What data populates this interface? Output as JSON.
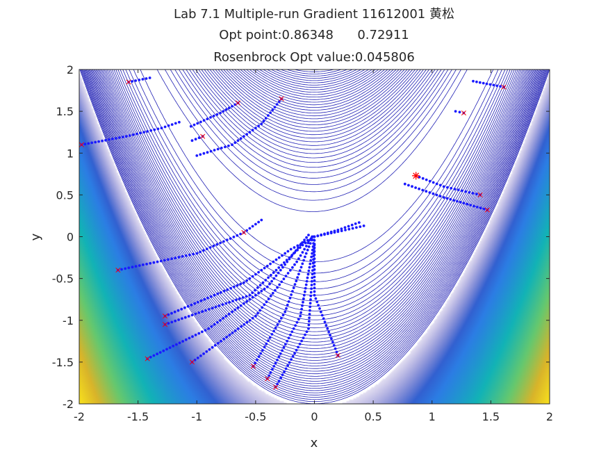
{
  "chart_data": {
    "type": "scatter",
    "title": [
      "Lab 7.1 Multiple-run Gradient 11612001 黄松",
      "Opt point:0.86348      0.72911",
      "Rosenbrock Opt value:0.045806"
    ],
    "xlabel": "x",
    "ylabel": "y",
    "xlim": [
      -2,
      2
    ],
    "ylim": [
      -2,
      2
    ],
    "x_ticks": [
      "-2",
      "-1.5",
      "-1",
      "-0.5",
      "0",
      "0.5",
      "1",
      "1.5",
      "2"
    ],
    "y_ticks": [
      "2",
      "1.5",
      "1",
      "0.5",
      "0",
      "-0.5",
      "-1",
      "-1.5",
      "-2"
    ],
    "background": "filled contour of Rosenbrock function f(x,y)=(1-x)^2+100(y-x^2)^2 with blue contour lines",
    "colors": {
      "contour_line": "#1f1fb4",
      "path_dots": "#1a1aff",
      "start_marker": "#ff0000",
      "opt_marker": "#ff0000",
      "colormap": [
        "#3e26a8",
        "#2c7de4",
        "#12b3b6",
        "#65c86f",
        "#d9b42a",
        "#f9e21d"
      ]
    },
    "optimum": {
      "x": 0.86348,
      "y": 0.72911,
      "marker": "asterisk"
    },
    "start_points": [
      {
        "x": -1.58,
        "y": 1.85
      },
      {
        "x": -1.98,
        "y": 1.1
      },
      {
        "x": -0.95,
        "y": 1.2
      },
      {
        "x": -0.65,
        "y": 1.6
      },
      {
        "x": -0.28,
        "y": 1.65
      },
      {
        "x": 1.27,
        "y": 1.48
      },
      {
        "x": 1.61,
        "y": 1.79
      },
      {
        "x": 1.41,
        "y": 0.5
      },
      {
        "x": 1.47,
        "y": 0.32
      },
      {
        "x": -0.6,
        "y": 0.05
      },
      {
        "x": -1.67,
        "y": -0.4
      },
      {
        "x": -1.27,
        "y": -0.95
      },
      {
        "x": -1.27,
        "y": -1.05
      },
      {
        "x": -1.42,
        "y": -1.46
      },
      {
        "x": -1.04,
        "y": -1.5
      },
      {
        "x": -0.52,
        "y": -1.55
      },
      {
        "x": -0.4,
        "y": -1.7
      },
      {
        "x": -0.33,
        "y": -1.8
      },
      {
        "x": 0.2,
        "y": -1.42
      }
    ],
    "paths": [
      {
        "points": [
          [
            -1.58,
            1.85
          ],
          [
            -1.4,
            1.9
          ]
        ]
      },
      {
        "points": [
          [
            -1.98,
            1.1
          ],
          [
            -1.6,
            1.2
          ],
          [
            -1.3,
            1.3
          ],
          [
            -1.15,
            1.37
          ]
        ]
      },
      {
        "points": [
          [
            -1.05,
            1.32
          ],
          [
            -0.8,
            1.48
          ],
          [
            -0.65,
            1.6
          ]
        ]
      },
      {
        "points": [
          [
            -1.04,
            1.15
          ],
          [
            -0.95,
            1.2
          ]
        ]
      },
      {
        "points": [
          [
            -1.0,
            0.97
          ],
          [
            -0.7,
            1.1
          ],
          [
            -0.45,
            1.35
          ],
          [
            -0.28,
            1.65
          ]
        ]
      },
      {
        "points": [
          [
            1.61,
            1.79
          ],
          [
            1.35,
            1.86
          ]
        ]
      },
      {
        "points": [
          [
            1.27,
            1.48
          ],
          [
            1.2,
            1.5
          ]
        ]
      },
      {
        "points": [
          [
            0.86348,
            0.72911
          ],
          [
            1.1,
            0.6
          ],
          [
            1.41,
            0.5
          ]
        ]
      },
      {
        "points": [
          [
            0.77,
            0.63
          ],
          [
            1.1,
            0.47
          ],
          [
            1.47,
            0.32
          ]
        ]
      },
      {
        "points": [
          [
            -1.67,
            -0.4
          ],
          [
            -1.0,
            -0.2
          ],
          [
            -0.6,
            0.05
          ],
          [
            -0.45,
            0.2
          ]
        ]
      },
      {
        "points": [
          [
            -1.27,
            -0.95
          ],
          [
            -0.6,
            -0.55
          ],
          [
            -0.2,
            -0.15
          ],
          [
            0.0,
            0.0
          ],
          [
            0.2,
            0.08
          ],
          [
            0.38,
            0.17
          ]
        ]
      },
      {
        "points": [
          [
            -1.27,
            -1.05
          ],
          [
            -0.55,
            -0.7
          ],
          [
            -0.1,
            -0.1
          ],
          [
            0.0,
            0.0
          ],
          [
            0.2,
            0.06
          ],
          [
            0.42,
            0.13
          ]
        ]
      },
      {
        "points": [
          [
            -1.42,
            -1.46
          ],
          [
            -0.9,
            -1.1
          ],
          [
            -0.4,
            -0.6
          ],
          [
            -0.12,
            -0.1
          ],
          [
            -0.05,
            0.02
          ]
        ]
      },
      {
        "points": [
          [
            -1.04,
            -1.5
          ],
          [
            -0.5,
            -0.95
          ],
          [
            -0.15,
            -0.3
          ],
          [
            -0.02,
            0.0
          ]
        ]
      },
      {
        "points": [
          [
            -0.52,
            -1.55
          ],
          [
            -0.25,
            -0.9
          ],
          [
            -0.07,
            -0.2
          ],
          [
            -0.01,
            0.0
          ]
        ]
      },
      {
        "points": [
          [
            -0.4,
            -1.7
          ],
          [
            -0.12,
            -0.95
          ],
          [
            -0.02,
            -0.2
          ],
          [
            0.0,
            0.0
          ]
        ]
      },
      {
        "points": [
          [
            -0.33,
            -1.8
          ],
          [
            -0.05,
            -1.1
          ],
          [
            0.0,
            -0.1
          ]
        ]
      },
      {
        "points": [
          [
            0.2,
            -1.42
          ],
          [
            0.0,
            -0.7
          ],
          [
            0.0,
            0.0
          ]
        ]
      }
    ]
  }
}
